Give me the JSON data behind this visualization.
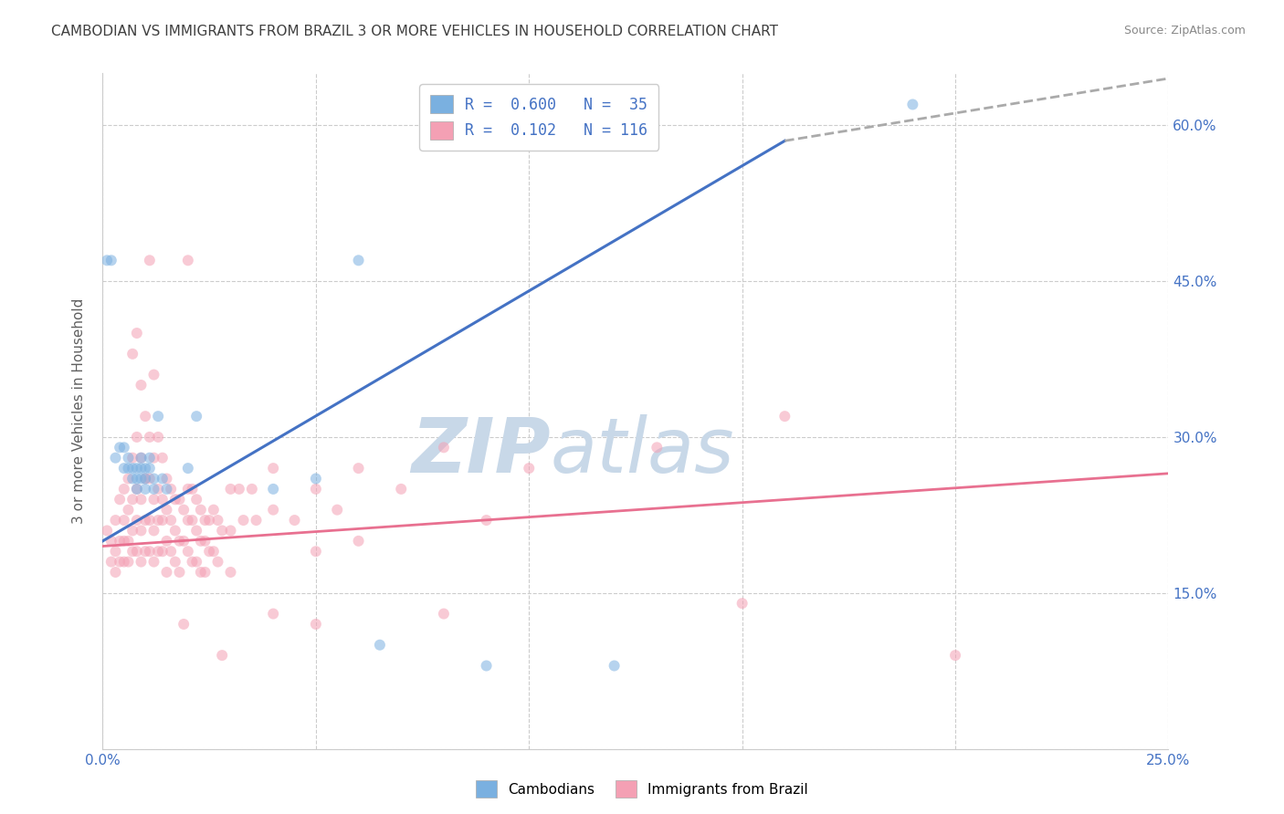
{
  "title": "CAMBODIAN VS IMMIGRANTS FROM BRAZIL 3 OR MORE VEHICLES IN HOUSEHOLD CORRELATION CHART",
  "source": "Source: ZipAtlas.com",
  "ylabel": "3 or more Vehicles in Household",
  "x_min": 0.0,
  "x_max": 0.25,
  "y_min": 0.0,
  "y_max": 0.65,
  "x_ticks": [
    0.0,
    0.05,
    0.1,
    0.15,
    0.2,
    0.25
  ],
  "x_tick_labels": [
    "0.0%",
    "",
    "",
    "",
    "",
    "25.0%"
  ],
  "y_ticks": [
    0.0,
    0.15,
    0.3,
    0.45,
    0.6
  ],
  "y_tick_labels_right": [
    "",
    "15.0%",
    "30.0%",
    "45.0%",
    "60.0%"
  ],
  "legend_r1": "R =  0.600",
  "legend_n1": "N =  35",
  "legend_r2": "R =  0.102",
  "legend_n2": "N = 116",
  "cambodian_scatter": [
    [
      0.001,
      0.47
    ],
    [
      0.002,
      0.47
    ],
    [
      0.003,
      0.28
    ],
    [
      0.004,
      0.29
    ],
    [
      0.005,
      0.27
    ],
    [
      0.005,
      0.29
    ],
    [
      0.006,
      0.27
    ],
    [
      0.006,
      0.28
    ],
    [
      0.007,
      0.27
    ],
    [
      0.007,
      0.26
    ],
    [
      0.008,
      0.27
    ],
    [
      0.008,
      0.26
    ],
    [
      0.008,
      0.25
    ],
    [
      0.009,
      0.28
    ],
    [
      0.009,
      0.27
    ],
    [
      0.009,
      0.26
    ],
    [
      0.01,
      0.27
    ],
    [
      0.01,
      0.26
    ],
    [
      0.01,
      0.25
    ],
    [
      0.011,
      0.28
    ],
    [
      0.011,
      0.27
    ],
    [
      0.012,
      0.26
    ],
    [
      0.012,
      0.25
    ],
    [
      0.013,
      0.32
    ],
    [
      0.014,
      0.26
    ],
    [
      0.015,
      0.25
    ],
    [
      0.02,
      0.27
    ],
    [
      0.022,
      0.32
    ],
    [
      0.04,
      0.25
    ],
    [
      0.05,
      0.26
    ],
    [
      0.06,
      0.47
    ],
    [
      0.065,
      0.1
    ],
    [
      0.09,
      0.08
    ],
    [
      0.12,
      0.08
    ],
    [
      0.19,
      0.62
    ]
  ],
  "brazil_scatter": [
    [
      0.001,
      0.21
    ],
    [
      0.002,
      0.2
    ],
    [
      0.002,
      0.18
    ],
    [
      0.003,
      0.22
    ],
    [
      0.003,
      0.19
    ],
    [
      0.003,
      0.17
    ],
    [
      0.004,
      0.24
    ],
    [
      0.004,
      0.2
    ],
    [
      0.004,
      0.18
    ],
    [
      0.005,
      0.25
    ],
    [
      0.005,
      0.22
    ],
    [
      0.005,
      0.2
    ],
    [
      0.005,
      0.18
    ],
    [
      0.006,
      0.26
    ],
    [
      0.006,
      0.23
    ],
    [
      0.006,
      0.2
    ],
    [
      0.006,
      0.18
    ],
    [
      0.007,
      0.38
    ],
    [
      0.007,
      0.28
    ],
    [
      0.007,
      0.24
    ],
    [
      0.007,
      0.21
    ],
    [
      0.007,
      0.19
    ],
    [
      0.008,
      0.4
    ],
    [
      0.008,
      0.3
    ],
    [
      0.008,
      0.25
    ],
    [
      0.008,
      0.22
    ],
    [
      0.008,
      0.19
    ],
    [
      0.009,
      0.35
    ],
    [
      0.009,
      0.28
    ],
    [
      0.009,
      0.24
    ],
    [
      0.009,
      0.21
    ],
    [
      0.009,
      0.18
    ],
    [
      0.01,
      0.32
    ],
    [
      0.01,
      0.26
    ],
    [
      0.01,
      0.22
    ],
    [
      0.01,
      0.19
    ],
    [
      0.011,
      0.47
    ],
    [
      0.011,
      0.3
    ],
    [
      0.011,
      0.26
    ],
    [
      0.011,
      0.22
    ],
    [
      0.011,
      0.19
    ],
    [
      0.012,
      0.36
    ],
    [
      0.012,
      0.28
    ],
    [
      0.012,
      0.24
    ],
    [
      0.012,
      0.21
    ],
    [
      0.012,
      0.18
    ],
    [
      0.013,
      0.3
    ],
    [
      0.013,
      0.25
    ],
    [
      0.013,
      0.22
    ],
    [
      0.013,
      0.19
    ],
    [
      0.014,
      0.28
    ],
    [
      0.014,
      0.24
    ],
    [
      0.014,
      0.22
    ],
    [
      0.014,
      0.19
    ],
    [
      0.015,
      0.26
    ],
    [
      0.015,
      0.23
    ],
    [
      0.015,
      0.2
    ],
    [
      0.015,
      0.17
    ],
    [
      0.016,
      0.25
    ],
    [
      0.016,
      0.22
    ],
    [
      0.016,
      0.19
    ],
    [
      0.017,
      0.24
    ],
    [
      0.017,
      0.21
    ],
    [
      0.017,
      0.18
    ],
    [
      0.018,
      0.24
    ],
    [
      0.018,
      0.2
    ],
    [
      0.018,
      0.17
    ],
    [
      0.019,
      0.23
    ],
    [
      0.019,
      0.2
    ],
    [
      0.019,
      0.12
    ],
    [
      0.02,
      0.47
    ],
    [
      0.02,
      0.25
    ],
    [
      0.02,
      0.22
    ],
    [
      0.02,
      0.19
    ],
    [
      0.021,
      0.25
    ],
    [
      0.021,
      0.22
    ],
    [
      0.021,
      0.18
    ],
    [
      0.022,
      0.24
    ],
    [
      0.022,
      0.21
    ],
    [
      0.022,
      0.18
    ],
    [
      0.023,
      0.23
    ],
    [
      0.023,
      0.2
    ],
    [
      0.023,
      0.17
    ],
    [
      0.024,
      0.22
    ],
    [
      0.024,
      0.2
    ],
    [
      0.024,
      0.17
    ],
    [
      0.025,
      0.22
    ],
    [
      0.025,
      0.19
    ],
    [
      0.026,
      0.23
    ],
    [
      0.026,
      0.19
    ],
    [
      0.027,
      0.22
    ],
    [
      0.027,
      0.18
    ],
    [
      0.028,
      0.21
    ],
    [
      0.028,
      0.09
    ],
    [
      0.03,
      0.25
    ],
    [
      0.03,
      0.21
    ],
    [
      0.03,
      0.17
    ],
    [
      0.032,
      0.25
    ],
    [
      0.033,
      0.22
    ],
    [
      0.035,
      0.25
    ],
    [
      0.036,
      0.22
    ],
    [
      0.04,
      0.27
    ],
    [
      0.04,
      0.23
    ],
    [
      0.04,
      0.13
    ],
    [
      0.045,
      0.22
    ],
    [
      0.05,
      0.25
    ],
    [
      0.05,
      0.19
    ],
    [
      0.05,
      0.12
    ],
    [
      0.055,
      0.23
    ],
    [
      0.06,
      0.27
    ],
    [
      0.06,
      0.2
    ],
    [
      0.07,
      0.25
    ],
    [
      0.08,
      0.29
    ],
    [
      0.08,
      0.13
    ],
    [
      0.09,
      0.22
    ],
    [
      0.1,
      0.27
    ],
    [
      0.13,
      0.29
    ],
    [
      0.15,
      0.14
    ],
    [
      0.16,
      0.32
    ],
    [
      0.2,
      0.09
    ]
  ],
  "cambodian_line_solid": {
    "x": [
      0.0,
      0.16
    ],
    "y": [
      0.2,
      0.585
    ],
    "color": "#4472c4",
    "linewidth": 2.2
  },
  "cambodian_line_dashed": {
    "x": [
      0.16,
      0.25
    ],
    "y": [
      0.585,
      0.645
    ],
    "color": "#aaaaaa",
    "linewidth": 2.0
  },
  "brazil_line": {
    "x": [
      0.0,
      0.25
    ],
    "y": [
      0.195,
      0.265
    ],
    "color": "#e87090",
    "linewidth": 2.0
  },
  "scatter_cambodian_color": "#7ab0e0",
  "scatter_brazil_color": "#f4a0b4",
  "scatter_size": 75,
  "scatter_alpha": 0.55,
  "background_color": "#ffffff",
  "grid_color": "#cccccc",
  "title_color": "#404040",
  "axis_color": "#4472c4",
  "watermark_zip": "ZIP",
  "watermark_atlas": "atlas",
  "watermark_color": "#c8d8e8"
}
